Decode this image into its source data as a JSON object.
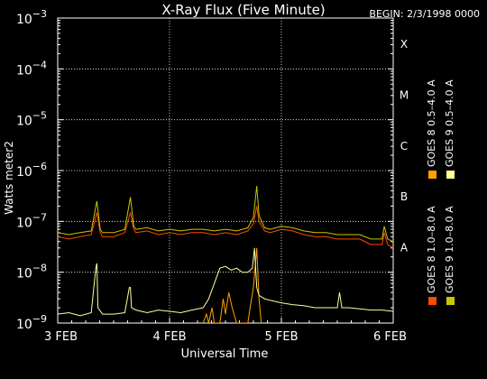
{
  "header": {
    "title": "X-Ray Flux (Five Minute)",
    "begin": "BEGIN: 2/3/1998 0000"
  },
  "colors": {
    "goes8_long": "#ff4a00",
    "goes8_short": "#ffa000",
    "goes9_long": "#c8c800",
    "goes9_short": "#ffff99"
  },
  "chart_data": {
    "type": "line",
    "title": "X-Ray Flux (Five Minute)",
    "xlabel": "Universal Time",
    "ylabel": "Watts meter2",
    "yscale": "log",
    "ylim": [
      1e-09,
      0.001
    ],
    "xlim": [
      0,
      3
    ],
    "x_ticks": [
      {
        "value": 0,
        "label": "3 FEB"
      },
      {
        "value": 1,
        "label": "4 FEB"
      },
      {
        "value": 2,
        "label": "5 FEB"
      },
      {
        "value": 3,
        "label": "6 FEB"
      }
    ],
    "y_ticks": [
      {
        "exp": -9,
        "label": "10",
        "sup": "−9"
      },
      {
        "exp": -8,
        "label": "10",
        "sup": "−8"
      },
      {
        "exp": -7,
        "label": "10",
        "sup": "−7"
      },
      {
        "exp": -6,
        "label": "10",
        "sup": "−6"
      },
      {
        "exp": -5,
        "label": "10",
        "sup": "−5"
      },
      {
        "exp": -4,
        "label": "10",
        "sup": "−4"
      },
      {
        "exp": -3,
        "label": "10",
        "sup": "−3"
      }
    ],
    "flare_classes": [
      {
        "label": "A",
        "exp": -8
      },
      {
        "label": "B",
        "exp": -7
      },
      {
        "label": "C",
        "exp": -6
      },
      {
        "label": "M",
        "exp": -5
      },
      {
        "label": "X",
        "exp": -4
      }
    ],
    "grid": "dotted",
    "legend_position": "right, vertical",
    "legend": [
      {
        "label": "GOES 8 1.0–8.0 A",
        "color_key": "goes8_long"
      },
      {
        "label": "GOES 8 0.5–4.0 A",
        "color_key": "goes8_short"
      },
      {
        "label": "GOES 9 1.0–8.0 A",
        "color_key": "goes9_long"
      },
      {
        "label": "GOES 9 0.5–4.0 A",
        "color_key": "goes9_short"
      }
    ],
    "series": [
      {
        "name": "GOES 8 1.0–8.0 A",
        "color_key": "goes8_long",
        "x": [
          0,
          0.1,
          0.2,
          0.3,
          0.35,
          0.38,
          0.4,
          0.5,
          0.6,
          0.65,
          0.68,
          0.7,
          0.8,
          0.9,
          1.0,
          1.1,
          1.2,
          1.3,
          1.4,
          1.5,
          1.6,
          1.7,
          1.75,
          1.78,
          1.8,
          1.85,
          1.9,
          2.0,
          2.1,
          2.2,
          2.3,
          2.4,
          2.5,
          2.6,
          2.7,
          2.8,
          2.9,
          2.92,
          2.95,
          3.0
        ],
        "y": [
          5e-08,
          4.5e-08,
          5e-08,
          5.5e-08,
          1.5e-07,
          6e-08,
          5e-08,
          5e-08,
          6e-08,
          1.5e-07,
          7e-08,
          6e-08,
          6.5e-08,
          5.5e-08,
          6e-08,
          5.5e-08,
          6e-08,
          6e-08,
          5.5e-08,
          6e-08,
          5.5e-08,
          6.5e-08,
          9e-08,
          2e-07,
          1e-07,
          6.5e-08,
          6e-08,
          7e-08,
          6.5e-08,
          5.5e-08,
          5e-08,
          5e-08,
          4.5e-08,
          4.5e-08,
          4.5e-08,
          3.5e-08,
          3.5e-08,
          6e-08,
          3.5e-08,
          3e-08
        ]
      },
      {
        "name": "GOES 8 0.5–4.0 A",
        "color_key": "goes8_short",
        "x": [
          1.3,
          1.33,
          1.35,
          1.38,
          1.4,
          1.45,
          1.48,
          1.5,
          1.53,
          1.56,
          1.6,
          1.65,
          1.7,
          1.72,
          1.75,
          1.78,
          1.8,
          1.82
        ],
        "y": [
          1e-09,
          1.5e-09,
          1e-09,
          2e-09,
          1e-09,
          1e-09,
          3e-09,
          1.5e-09,
          4e-09,
          2e-09,
          1e-09,
          1e-09,
          1e-09,
          2e-09,
          5e-09,
          3e-08,
          3e-09,
          1e-09
        ]
      },
      {
        "name": "GOES 9 1.0–8.0 A",
        "color_key": "goes9_long",
        "x": [
          0,
          0.1,
          0.2,
          0.3,
          0.35,
          0.38,
          0.4,
          0.5,
          0.6,
          0.65,
          0.68,
          0.7,
          0.8,
          0.9,
          1.0,
          1.1,
          1.2,
          1.3,
          1.4,
          1.5,
          1.6,
          1.7,
          1.75,
          1.78,
          1.8,
          1.85,
          1.9,
          2.0,
          2.1,
          2.2,
          2.3,
          2.4,
          2.5,
          2.6,
          2.7,
          2.8,
          2.9,
          2.92,
          2.95,
          3.0
        ],
        "y": [
          6e-08,
          5.5e-08,
          6e-08,
          6.5e-08,
          2.5e-07,
          7e-08,
          6e-08,
          6e-08,
          7e-08,
          3e-07,
          8e-08,
          7e-08,
          7.5e-08,
          6.5e-08,
          7e-08,
          6.5e-08,
          7e-08,
          7e-08,
          6.5e-08,
          7e-08,
          6.5e-08,
          7.5e-08,
          1.2e-07,
          5e-07,
          1.3e-07,
          7.5e-08,
          7e-08,
          8e-08,
          7.5e-08,
          6.5e-08,
          6e-08,
          6e-08,
          5.5e-08,
          5.5e-08,
          5.5e-08,
          4.5e-08,
          4.5e-08,
          8e-08,
          4.5e-08,
          4e-08
        ]
      },
      {
        "name": "GOES 9 0.5–4.0 A",
        "color_key": "goes9_short",
        "x": [
          0,
          0.1,
          0.2,
          0.3,
          0.34,
          0.35,
          0.36,
          0.4,
          0.5,
          0.6,
          0.64,
          0.65,
          0.66,
          0.7,
          0.8,
          0.9,
          1.0,
          1.1,
          1.2,
          1.3,
          1.35,
          1.4,
          1.45,
          1.5,
          1.55,
          1.6,
          1.65,
          1.7,
          1.74,
          1.76,
          1.78,
          1.8,
          1.85,
          1.9,
          2.0,
          2.1,
          2.2,
          2.3,
          2.4,
          2.5,
          2.52,
          2.54,
          2.6,
          2.7,
          2.8,
          2.9,
          3.0
        ],
        "y": [
          1.5e-09,
          1.6e-09,
          1.4e-09,
          1.6e-09,
          1.2e-08,
          1.5e-08,
          2e-09,
          1.5e-09,
          1.5e-09,
          1.6e-09,
          5e-09,
          5e-09,
          2e-09,
          1.8e-09,
          1.6e-09,
          1.8e-09,
          1.7e-09,
          1.6e-09,
          1.8e-09,
          2e-09,
          3e-09,
          6e-09,
          1.2e-08,
          1.3e-08,
          1.1e-08,
          1.2e-08,
          1e-08,
          1e-08,
          1.2e-08,
          3e-08,
          5e-09,
          3.5e-09,
          3e-09,
          2.8e-09,
          2.5e-09,
          2.3e-09,
          2.2e-09,
          2e-09,
          2e-09,
          2e-09,
          4e-09,
          2e-09,
          2e-09,
          1.9e-09,
          1.8e-09,
          1.8e-09,
          1.7e-09
        ]
      }
    ]
  }
}
